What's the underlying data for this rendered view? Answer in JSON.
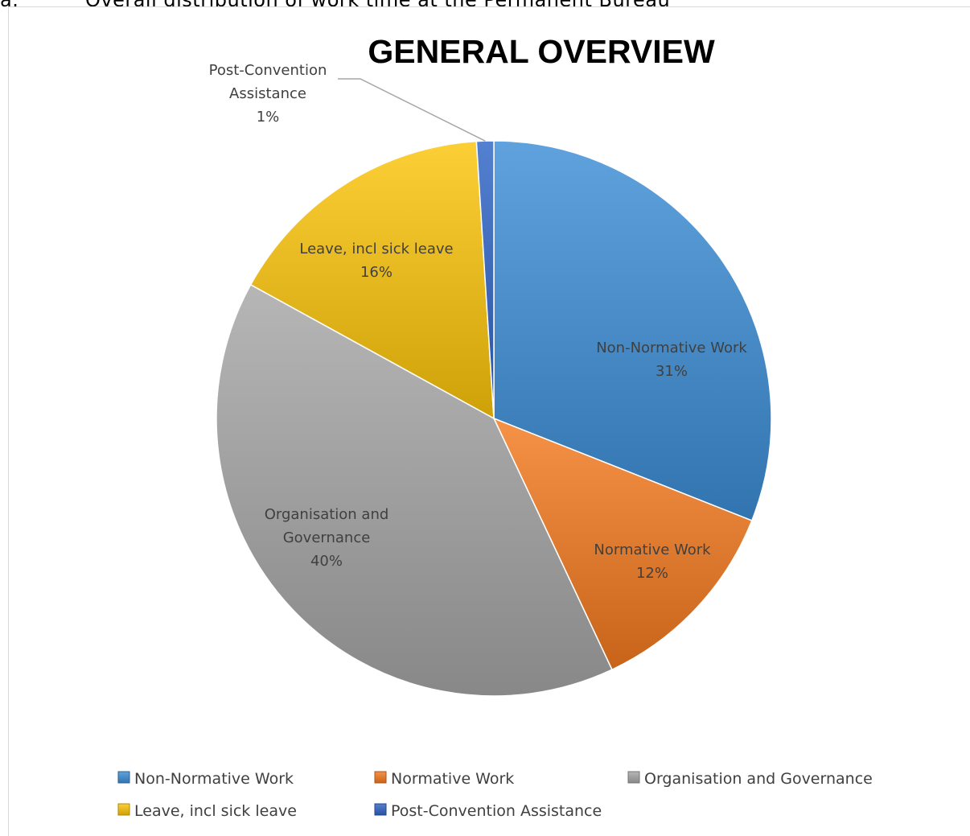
{
  "caption": {
    "number": "a.",
    "text": "Overall distribution of work time at the Permanent Bureau"
  },
  "chart_data": {
    "type": "pie",
    "title": "GENERAL OVERVIEW",
    "categories": [
      "Non-Normative Work",
      "Normative Work",
      "Organisation and Governance",
      "Leave, incl sick leave",
      "Post-Convention Assistance"
    ],
    "values": [
      31,
      12,
      40,
      16,
      1
    ],
    "value_labels": [
      "31%",
      "12%",
      "40%",
      "16%",
      "1%"
    ],
    "label_lines": [
      [
        "Non-Normative Work",
        "31%"
      ],
      [
        "Normative Work",
        "12%"
      ],
      [
        "Organisation and",
        "Governance",
        "40%"
      ],
      [
        "Leave, incl sick leave",
        "16%"
      ],
      [
        "Post-Convention",
        "Assistance",
        "1%"
      ]
    ],
    "colors": [
      "#3c8ed6",
      "#f47a1f",
      "#a6a6a6",
      "#fcc40a",
      "#2f64c6"
    ],
    "legend_position": "bottom"
  }
}
